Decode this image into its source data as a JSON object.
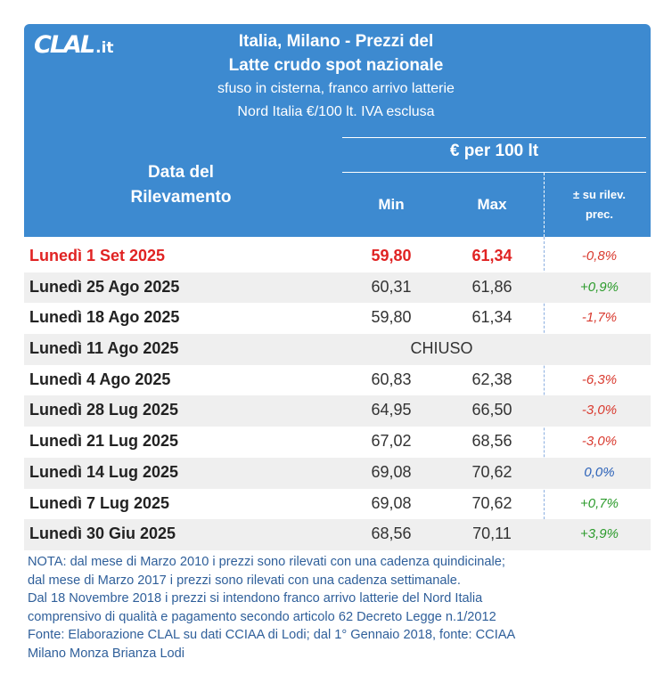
{
  "logo": {
    "main": "CLAL",
    "suffix": ".it"
  },
  "header": {
    "title_line1": "Italia, Milano - Prezzi del",
    "title_line2": "Latte crudo spot nazionale",
    "subtitle_line1": "sfuso in cisterna, franco arrivo latterie",
    "subtitle_line2": "Nord Italia €/100 lt. IVA esclusa",
    "date_col_line1": "Data del",
    "date_col_line2": "Rilevamento",
    "unit_group": "€ per 100 lt",
    "min_col": "Min",
    "max_col": "Max",
    "var_col_line1": "± su rilev.",
    "var_col_line2": "prec."
  },
  "rows": [
    {
      "date": "Lunedì 1 Set 2025",
      "min": "59,80",
      "max": "61,34",
      "var": "-0,8%",
      "trend": "neg"
    },
    {
      "date": "Lunedì 25 Ago 2025",
      "min": "60,31",
      "max": "61,86",
      "var": "+0,9%",
      "trend": "pos"
    },
    {
      "date": "Lunedì 18 Ago 2025",
      "min": "59,80",
      "max": "61,34",
      "var": "-1,7%",
      "trend": "neg"
    },
    {
      "date": "Lunedì 11 Ago 2025",
      "closed": "CHIUSO"
    },
    {
      "date": "Lunedì 4 Ago 2025",
      "min": "60,83",
      "max": "62,38",
      "var": "-6,3%",
      "trend": "neg"
    },
    {
      "date": "Lunedì 28 Lug 2025",
      "min": "64,95",
      "max": "66,50",
      "var": "-3,0%",
      "trend": "neg"
    },
    {
      "date": "Lunedì 21 Lug 2025",
      "min": "67,02",
      "max": "68,56",
      "var": "-3,0%",
      "trend": "neg"
    },
    {
      "date": "Lunedì 14 Lug 2025",
      "min": "69,08",
      "max": "70,62",
      "var": "0,0%",
      "trend": "zero"
    },
    {
      "date": "Lunedì 7 Lug 2025",
      "min": "69,08",
      "max": "70,62",
      "var": "+0,7%",
      "trend": "pos"
    },
    {
      "date": "Lunedì 30 Giu 2025",
      "min": "68,56",
      "max": "70,11",
      "var": "+3,9%",
      "trend": "pos"
    }
  ],
  "notes": [
    "NOTA: dal mese di Marzo 2010 i prezzi sono rilevati con una cadenza quindicinale;",
    "dal mese di Marzo 2017 i prezzi sono rilevati con una cadenza settimanale.",
    "Dal 18 Novembre 2018 i prezzi si intendono franco arrivo latterie del Nord Italia",
    "comprensivo di qualità e pagamento secondo articolo 62 Decreto Legge n.1/2012",
    "Fonte: Elaborazione CLAL su dati CCIAA di Lodi; dal 1° Gennaio 2018, fonte: CCIAA",
    "Milano Monza Brianza Lodi"
  ],
  "colors": {
    "header_bg": "#3d8ad0",
    "highlight_red": "#e02323",
    "negative": "#d93a2f",
    "positive": "#2c9b2c",
    "zero": "#2c62b8",
    "notes": "#2f5f9a",
    "row_shade": "#efefef"
  }
}
